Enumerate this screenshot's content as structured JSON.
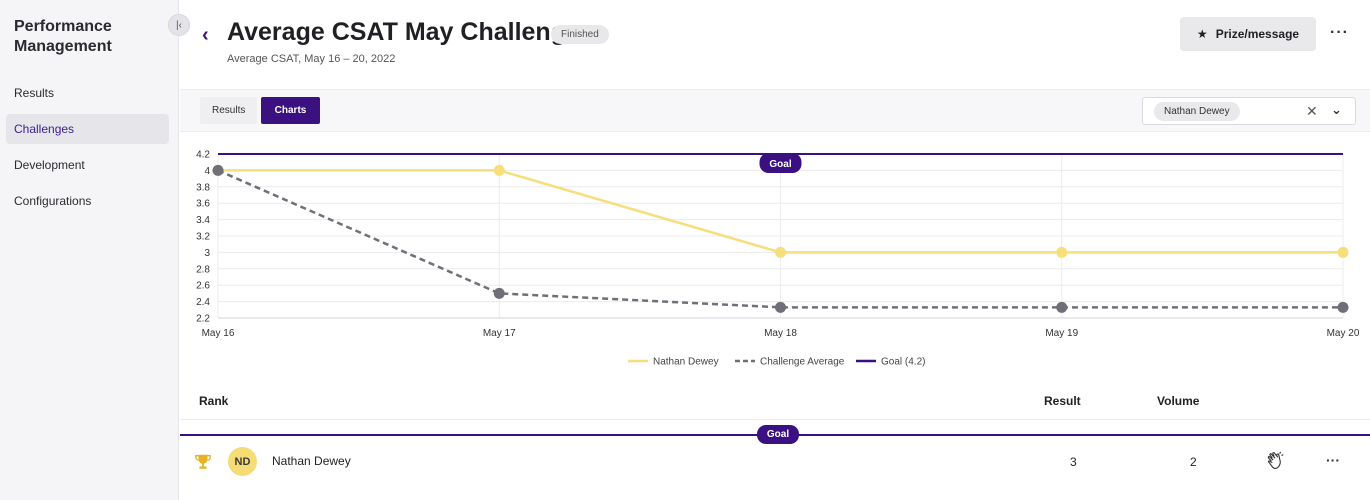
{
  "sidebar": {
    "title": "Performance Management",
    "collapse_icon": "collapse-left-icon",
    "items": [
      {
        "label": "Results",
        "active": false
      },
      {
        "label": "Challenges",
        "active": true
      },
      {
        "label": "Development",
        "active": false
      },
      {
        "label": "Configurations",
        "active": false
      }
    ]
  },
  "header": {
    "title": "Average CSAT May Challenge",
    "status": "Finished",
    "subtitle": "Average CSAT, May 16 – 20, 2022",
    "prize_button": "Prize/message",
    "more": "···"
  },
  "toolbar": {
    "tabs": [
      {
        "label": "Results",
        "active": false
      },
      {
        "label": "Charts",
        "active": true
      }
    ],
    "selected_user": "Nathan Dewey"
  },
  "chart_data": {
    "type": "line",
    "categories": [
      "May 16",
      "May 17",
      "May 18",
      "May 19",
      "May 20"
    ],
    "series": [
      {
        "name": "Nathan Dewey",
        "values": [
          4,
          4,
          3,
          3,
          3
        ],
        "color": "#f6de7a",
        "style": "solid"
      },
      {
        "name": "Challenge Average",
        "values": [
          4,
          2.5,
          2.33,
          2.33,
          2.33
        ],
        "color": "#6f6f78",
        "style": "dashed"
      },
      {
        "name": "Goal (4.2)",
        "values": [
          4.2,
          4.2,
          4.2,
          4.2,
          4.2
        ],
        "color": "#3b1080",
        "style": "solid"
      }
    ],
    "goal_label": "Goal",
    "ylim": [
      2.2,
      4.2
    ],
    "yticks": [
      "4.2",
      "4",
      "3.8",
      "3.6",
      "3.4",
      "3.2",
      "3",
      "2.8",
      "2.6",
      "2.4",
      "2.2"
    ],
    "grid": true,
    "legend": "bottom-center"
  },
  "table": {
    "headers": {
      "rank": "Rank",
      "result": "Result",
      "volume": "Volume"
    },
    "goal_label": "Goal",
    "rows": [
      {
        "initials": "ND",
        "name": "Nathan Dewey",
        "result": "3",
        "volume": "2",
        "rank_icon": "trophy-icon",
        "action_icon": "clap-icon",
        "more": "···"
      }
    ]
  },
  "colors": {
    "accent": "#3b1080",
    "user_series": "#f6de7a",
    "average_series": "#6f6f78"
  }
}
